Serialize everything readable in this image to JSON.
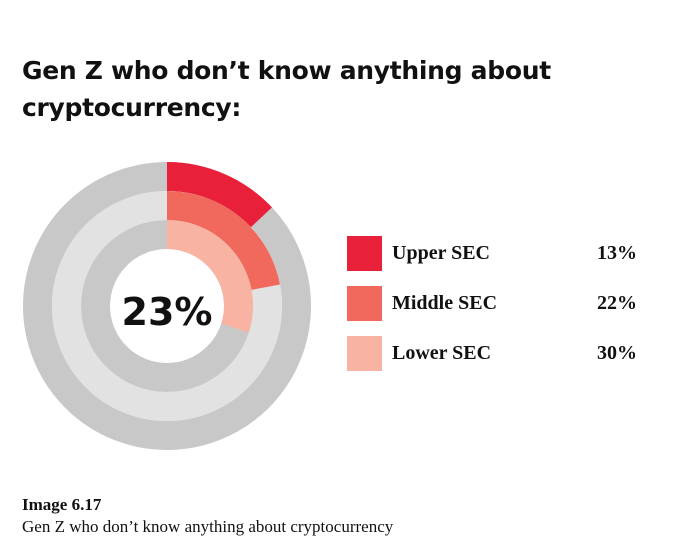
{
  "title": {
    "line1": "Gen Z who don’t know anything about",
    "line2": "cryptocurrency:"
  },
  "chart_data": {
    "type": "pie",
    "subtype": "concentric-rings",
    "title": "Gen Z who don’t know anything about cryptocurrency:",
    "center_label": "23%",
    "series": [
      {
        "name": "Upper SEC",
        "value": 13,
        "label": "13%",
        "color": "#e8203a"
      },
      {
        "name": "Middle SEC",
        "value": 22,
        "label": "22%",
        "color": "#f0695c"
      },
      {
        "name": "Lower SEC",
        "value": 30,
        "label": "30%",
        "color": "#f9b3a3"
      }
    ],
    "track_colors": [
      "#c8c8c8",
      "#e2e2e2"
    ],
    "max": 100
  },
  "caption": {
    "heading": "Image 6.17",
    "text": "Gen Z who don’t know anything about cryptocurrency"
  }
}
